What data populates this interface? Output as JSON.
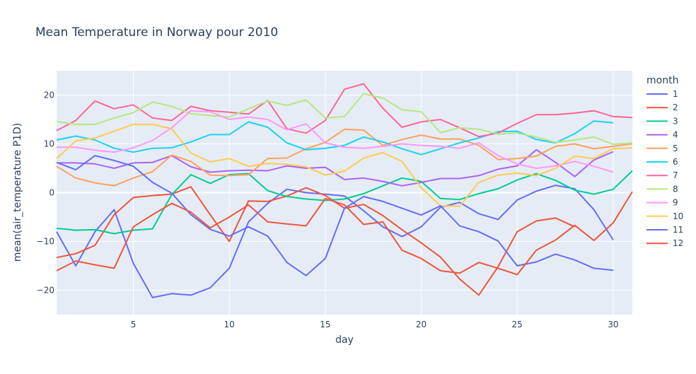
{
  "chart_data": {
    "type": "line",
    "title": "Mean Temperature in Norway pour 2010",
    "xlabel": "day",
    "ylabel": "mean(air_temperature P1D)",
    "xlim": [
      1,
      31
    ],
    "ylim": [
      -25,
      25
    ],
    "x_ticks": [
      5,
      10,
      15,
      20,
      25,
      30
    ],
    "y_ticks": [
      -20,
      -10,
      0,
      10,
      20
    ],
    "grid": true,
    "legend_title": "month",
    "legend_position": "right",
    "series": [
      {
        "name": "1",
        "color": "#636efa",
        "x": [
          1,
          2,
          3,
          4,
          5,
          6,
          7,
          8,
          9,
          10,
          11,
          12,
          13,
          14,
          15,
          16,
          17,
          18,
          19,
          20,
          21,
          22,
          23,
          24,
          25,
          26,
          27,
          28,
          29,
          30
        ],
        "values": [
          -8,
          -15,
          -8,
          -3.5,
          -14.5,
          -21.5,
          -20.7,
          -21,
          -19.5,
          -15.5,
          -6,
          -2.2,
          0.7,
          0,
          -0.3,
          -0.7,
          -3.7,
          -7,
          -9,
          -7,
          -3,
          -2,
          -4.3,
          -5.5,
          -1.5,
          0.3,
          1.5,
          0.8,
          -3.5,
          -9.7
        ]
      },
      {
        "name": "2",
        "color": "#EF553B",
        "x": [
          1,
          2,
          3,
          4,
          5,
          6,
          7,
          8,
          9,
          10,
          11,
          12,
          13,
          14,
          15,
          16,
          17,
          18,
          19,
          20,
          21,
          22,
          23,
          24,
          25,
          26,
          27,
          28
        ],
        "values": [
          -13.3,
          -12.5,
          -10.8,
          -4.5,
          -1,
          -0.6,
          -0.3,
          1.2,
          -4.5,
          -10,
          -1.7,
          -1.8,
          -0.7,
          1,
          -0.6,
          -3.2,
          -2.4,
          -4.7,
          -7.6,
          -10.3,
          -13.2,
          -17.7,
          -21,
          -15.2,
          -8,
          -5.8,
          -5.2,
          -7
        ]
      },
      {
        "name": "3",
        "color": "#00cc96",
        "x": [
          1,
          2,
          3,
          4,
          5,
          6,
          7,
          8,
          9,
          10,
          11,
          12,
          13,
          14,
          15,
          16,
          17,
          18,
          19,
          20,
          21,
          22,
          23,
          24,
          25,
          26,
          27,
          28,
          29,
          30,
          31
        ],
        "values": [
          -7.3,
          -7.7,
          -7.6,
          -8.4,
          -7.7,
          -7.4,
          -0.4,
          3.7,
          1.9,
          3.7,
          3.9,
          0.4,
          -0.8,
          -1.3,
          -1.6,
          -1.3,
          -0.2,
          1.4,
          3,
          2.3,
          -1.2,
          -1.4,
          -0.2,
          0.8,
          2.6,
          3.9,
          2.5,
          0.5,
          -0.3,
          0.7,
          4.5
        ]
      },
      {
        "name": "4",
        "color": "#ab63fa",
        "x": [
          1,
          2,
          3,
          4,
          5,
          6,
          7,
          8,
          9,
          10,
          11,
          12,
          13,
          14,
          15,
          16,
          17,
          18,
          19,
          20,
          21,
          22,
          23,
          24,
          25,
          26,
          27,
          28,
          29,
          30
        ],
        "values": [
          6.1,
          6.1,
          5.9,
          5,
          6.1,
          6.2,
          7.6,
          5.3,
          4.2,
          4.5,
          4.6,
          4.5,
          5.5,
          5,
          5.2,
          2.7,
          3,
          2.3,
          1.4,
          2.1,
          2.9,
          2.9,
          3.5,
          4.8,
          5.5,
          8.8,
          6.2,
          3.3,
          6.7,
          8.4
        ]
      },
      {
        "name": "5",
        "color": "#FFA15A",
        "x": [
          1,
          2,
          3,
          4,
          5,
          6,
          7,
          8,
          9,
          10,
          11,
          12,
          13,
          14,
          15,
          16,
          17,
          18,
          19,
          20,
          21,
          22,
          23,
          24,
          25,
          26,
          27,
          28,
          29,
          30,
          31
        ],
        "values": [
          5.4,
          3,
          2,
          1.4,
          3,
          4.3,
          7.7,
          6.4,
          3.6,
          3.5,
          3.7,
          7,
          7.1,
          9,
          10.3,
          13,
          12.8,
          9.7,
          10.9,
          11.8,
          11,
          11,
          9.7,
          6.8,
          7,
          7.5,
          9.5,
          10,
          9,
          9.5,
          10
        ]
      },
      {
        "name": "6",
        "color": "#19d3f3",
        "x": [
          1,
          2,
          3,
          4,
          5,
          6,
          7,
          8,
          9,
          10,
          11,
          12,
          13,
          14,
          15,
          16,
          17,
          18,
          19,
          20,
          21,
          22,
          23,
          24,
          25,
          26,
          27,
          28,
          29,
          30
        ],
        "values": [
          10.8,
          11.6,
          10.8,
          9.1,
          8.3,
          9.1,
          9.2,
          10.4,
          11.9,
          11.9,
          14.5,
          13.4,
          10.2,
          8.8,
          9.1,
          9.7,
          11.4,
          10.4,
          9,
          7.8,
          9,
          10.2,
          11.2,
          12.5,
          12.6,
          10.9,
          10.2,
          12.1,
          14.7,
          14.3
        ]
      },
      {
        "name": "7",
        "color": "#FF6692",
        "x": [
          1,
          2,
          3,
          4,
          5,
          6,
          7,
          8,
          9,
          10,
          11,
          12,
          13,
          14,
          15,
          16,
          17,
          18,
          19,
          20,
          21,
          22,
          23,
          24,
          25,
          26,
          27,
          28,
          29,
          30,
          31
        ],
        "values": [
          12.7,
          14.8,
          18.8,
          17.2,
          18,
          15.3,
          14.8,
          17.7,
          16.8,
          16.5,
          16.1,
          18.9,
          13.1,
          12.2,
          14.8,
          21.2,
          22.3,
          17.3,
          13.4,
          14.5,
          15,
          13.3,
          11.5,
          12.2,
          14.2,
          16,
          16,
          16.3,
          16.8,
          15.6,
          15.4
        ]
      },
      {
        "name": "8",
        "color": "#B6E880",
        "x": [
          1,
          2,
          3,
          4,
          5,
          6,
          7,
          8,
          9,
          10,
          11,
          12,
          13,
          14,
          15,
          16,
          17,
          18,
          19,
          20,
          21,
          22,
          23,
          24,
          25,
          26,
          27,
          28,
          29,
          30,
          31
        ],
        "values": [
          14.6,
          14,
          14,
          15.3,
          16.4,
          18.6,
          17.7,
          16.2,
          15.8,
          15.5,
          17.2,
          18.8,
          17.9,
          19,
          15.3,
          15.6,
          20.3,
          19.4,
          17,
          16.6,
          12.3,
          13.3,
          13,
          12,
          12.2,
          11.4,
          10.3,
          10.8,
          11.4,
          9.9,
          10.2
        ]
      },
      {
        "name": "9",
        "color": "#FF97FF",
        "x": [
          1,
          2,
          3,
          4,
          5,
          6,
          7,
          8,
          9,
          10,
          11,
          12,
          13,
          14,
          15,
          16,
          17,
          18,
          19,
          20,
          21,
          22,
          23,
          24,
          25,
          26,
          27,
          28,
          29,
          30
        ],
        "values": [
          9.3,
          9.3,
          8.7,
          8.3,
          9.2,
          10.7,
          13.3,
          16.8,
          16.6,
          15,
          15.5,
          15,
          12.9,
          14.1,
          10.2,
          9.3,
          9.1,
          9.5,
          10,
          9.7,
          9.5,
          9.1,
          10.2,
          7.6,
          5.9,
          5,
          5.5,
          6.4,
          5.4,
          4.2
        ]
      },
      {
        "name": "10",
        "color": "#FECB52",
        "x": [
          1,
          2,
          3,
          4,
          5,
          6,
          7,
          8,
          9,
          10,
          11,
          12,
          13,
          14,
          15,
          16,
          17,
          18,
          19,
          20,
          21,
          22,
          23,
          24,
          25,
          26,
          27,
          28,
          29,
          30,
          31
        ],
        "values": [
          7,
          10.6,
          11.2,
          12.6,
          14,
          14,
          13.1,
          8.1,
          6.3,
          7,
          5.4,
          6,
          5.8,
          5.3,
          3.6,
          4.4,
          7.1,
          8.2,
          6.4,
          1,
          -2.7,
          -2.8,
          2.1,
          3.6,
          4,
          3.5,
          5,
          7.5,
          7,
          9,
          9.2
        ]
      },
      {
        "name": "11",
        "color": "#636efa",
        "x": [
          1,
          2,
          3,
          4,
          5,
          6,
          7,
          8,
          9,
          10,
          11,
          12,
          13,
          14,
          15,
          16,
          17,
          18,
          19,
          20,
          21,
          22,
          23,
          24,
          25,
          26,
          27,
          28,
          29,
          30
        ],
        "values": [
          6.2,
          4.7,
          7.6,
          6.6,
          5.4,
          2.1,
          -0.1,
          -4.5,
          -7.5,
          -8.9,
          -7,
          -8.9,
          -14.3,
          -17,
          -13.5,
          -3.2,
          -0.8,
          -1.8,
          -3.2,
          -4.6,
          -2.7,
          -6.8,
          -8,
          -9.9,
          -15,
          -14.2,
          -12.6,
          -13.8,
          -15.5,
          -15.9
        ]
      },
      {
        "name": "12",
        "color": "#EF553B",
        "x": [
          1,
          2,
          3,
          4,
          5,
          6,
          7,
          8,
          9,
          10,
          11,
          12,
          13,
          14,
          15,
          16,
          17,
          18,
          19,
          20,
          21,
          22,
          23,
          24,
          25,
          26,
          27,
          28,
          29,
          30,
          31
        ],
        "values": [
          -16,
          -14,
          -14.8,
          -15.5,
          -7,
          -4.5,
          -2.2,
          -4,
          -7.2,
          -5,
          -2.5,
          -6,
          -6.4,
          -6.8,
          -1.2,
          -2.5,
          -6.5,
          -6,
          -11.8,
          -13.5,
          -16,
          -16.5,
          -14.3,
          -15.5,
          -16.8,
          -11.8,
          -9.7,
          -6.7,
          -9.8,
          -6.2,
          0.2
        ]
      }
    ]
  }
}
